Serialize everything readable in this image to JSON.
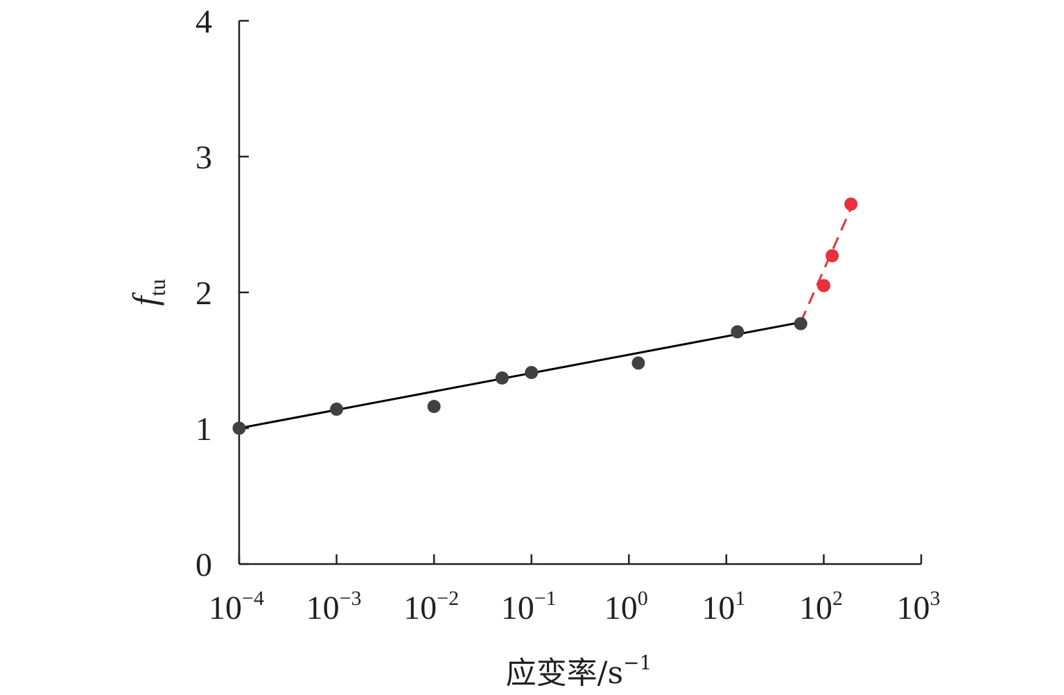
{
  "chart_data": {
    "type": "scatter",
    "xscale": "log",
    "xlabel": "应变率/s",
    "xlabel_sup": "−1",
    "ylabel": "f",
    "ylabel_sub": "tu",
    "xlim": [
      0.0001,
      1000
    ],
    "ylim": [
      0,
      4
    ],
    "grid": false,
    "xticks": [
      {
        "value": 0.0001,
        "base": "10",
        "exp": "−4"
      },
      {
        "value": 0.001,
        "base": "10",
        "exp": "−3"
      },
      {
        "value": 0.01,
        "base": "10",
        "exp": "−2"
      },
      {
        "value": 0.1,
        "base": "10",
        "exp": "−1"
      },
      {
        "value": 1,
        "base": "10",
        "exp": "0"
      },
      {
        "value": 10,
        "base": "10",
        "exp": "1"
      },
      {
        "value": 100,
        "base": "10",
        "exp": "2"
      },
      {
        "value": 1000,
        "base": "10",
        "exp": "3"
      }
    ],
    "yticks": [
      {
        "value": 0,
        "label": "0"
      },
      {
        "value": 1,
        "label": "1"
      },
      {
        "value": 2,
        "label": "2"
      },
      {
        "value": 3,
        "label": "3"
      },
      {
        "value": 4,
        "label": "4"
      }
    ],
    "series": [
      {
        "color": "#414042",
        "points": [
          {
            "x": 0.0001,
            "y": 1.0
          },
          {
            "x": 0.001,
            "y": 1.14
          },
          {
            "x": 0.01,
            "y": 1.16
          },
          {
            "x": 0.05,
            "y": 1.37
          },
          {
            "x": 0.1,
            "y": 1.41
          },
          {
            "x": 1.25,
            "y": 1.48
          },
          {
            "x": 13,
            "y": 1.71
          },
          {
            "x": 58,
            "y": 1.77
          }
        ],
        "fit": {
          "style": "solid",
          "color": "#000000",
          "from": {
            "x": 0.0001,
            "y": 1.0
          },
          "to": {
            "x": 58,
            "y": 1.78
          }
        }
      },
      {
        "color": "#e8303e",
        "points": [
          {
            "x": 100,
            "y": 2.05
          },
          {
            "x": 122,
            "y": 2.27
          },
          {
            "x": 190,
            "y": 2.65
          }
        ],
        "fit": {
          "style": "dashed",
          "color": "#e8303e",
          "from": {
            "x": 58,
            "y": 1.78
          },
          "to": {
            "x": 190,
            "y": 2.62
          }
        }
      }
    ]
  }
}
